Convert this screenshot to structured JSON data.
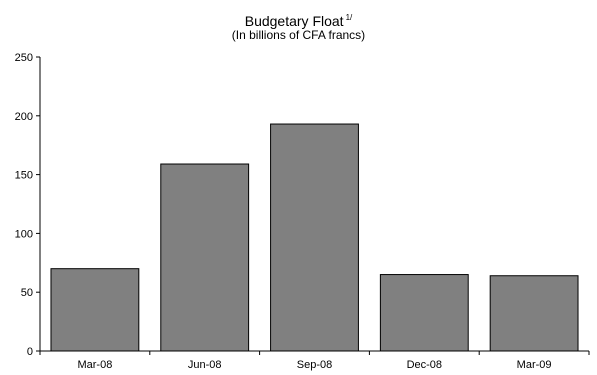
{
  "chart_data": {
    "type": "bar",
    "title": "Budgetary Float",
    "title_superscript": "1/",
    "subtitle": "(In billions of CFA francs)",
    "xlabel": "",
    "ylabel": "",
    "categories": [
      "Mar-08",
      "Jun-08",
      "Sep-08",
      "Dec-08",
      "Mar-09"
    ],
    "values": [
      70,
      159,
      193,
      65,
      64
    ],
    "ylim": [
      0,
      250
    ],
    "yticks": [
      0,
      50,
      100,
      150,
      200,
      250
    ],
    "grid": false,
    "legend": "none",
    "colors": {
      "bar": "#808080",
      "bar_edge": "#000000",
      "axis": "#000000"
    }
  }
}
